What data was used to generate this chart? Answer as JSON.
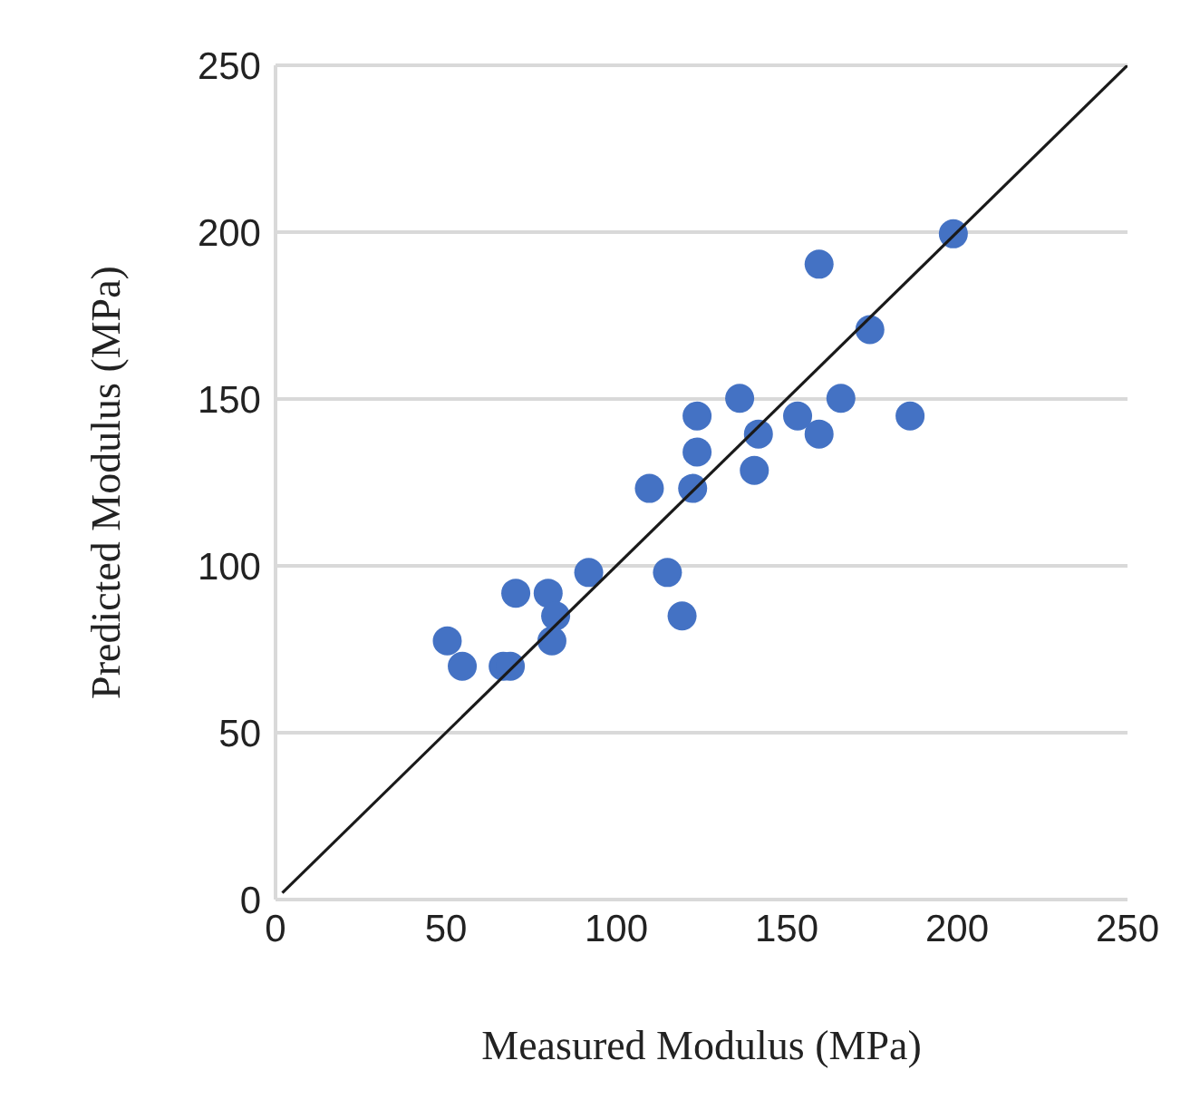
{
  "chart_data": {
    "type": "scatter",
    "xlabel": "Measured Modulus (MPa)",
    "ylabel": "Predicted Modulus (MPa)",
    "xlim": [
      0,
      250
    ],
    "xticks": [
      0,
      50,
      100,
      150,
      200,
      250
    ],
    "ylim": [
      0,
      250
    ],
    "yticks": [
      0,
      50,
      100,
      150,
      200,
      250
    ],
    "grid": "y",
    "series": [
      {
        "marker": "circle",
        "color": "#4472c4",
        "x": [
          50.4,
          54.8,
          66.8,
          68.9,
          70.5,
          80.0,
          82.2,
          81.1,
          91.9,
          109.7,
          115.0,
          119.3,
          122.4,
          123.7,
          123.7,
          136.2,
          141.7,
          140.5,
          153.2,
          159.5,
          159.5,
          165.9,
          174.4,
          186.2,
          198.9
        ],
        "values": [
          77.5,
          69.9,
          69.9,
          69.9,
          91.8,
          91.8,
          85.0,
          77.5,
          98.0,
          123.2,
          98.0,
          85.0,
          123.2,
          134.1,
          144.9,
          150.2,
          139.5,
          128.6,
          144.9,
          139.5,
          190.4,
          150.2,
          170.8,
          144.9,
          199.5
        ]
      },
      {
        "type": "line",
        "marker": "none",
        "color": "#1a1a1a",
        "x": [
          2,
          250
        ],
        "values": [
          2,
          250
        ]
      }
    ]
  }
}
